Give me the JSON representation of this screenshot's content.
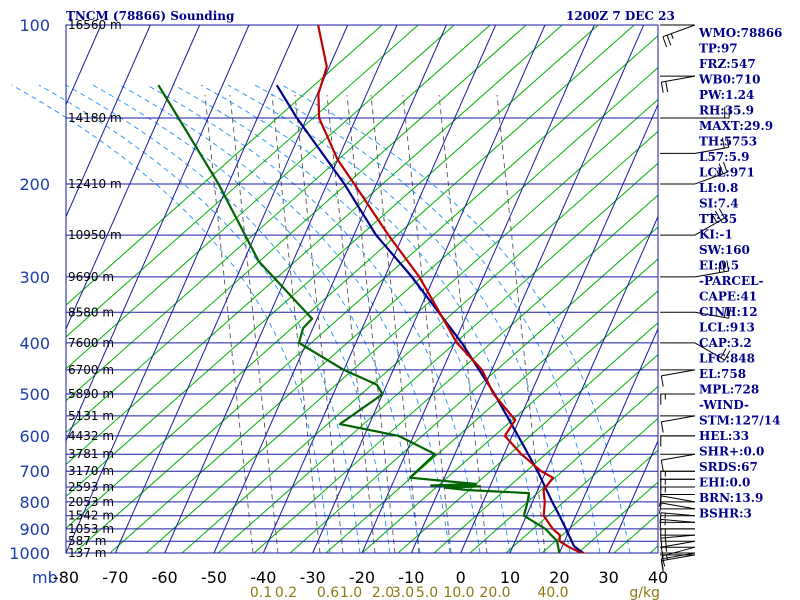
{
  "chart_data": {
    "type": "skew-t",
    "title": "TNCM (78866) Sounding",
    "valid_time": "1200Z  7 DEC 23",
    "pressure_axis_unit": "mb",
    "pressure_levels": [
      100,
      200,
      300,
      400,
      500,
      600,
      700,
      800,
      900,
      1000
    ],
    "temperature_ticks": [
      -80,
      -70,
      -60,
      -50,
      -40,
      -30,
      -20,
      -10,
      0,
      10,
      20,
      30,
      40
    ],
    "temperature_tick_labels": [
      "-80",
      "-70",
      "-60",
      "-50",
      "-40",
      "-30",
      "-20",
      "-10",
      "0",
      "10",
      "20",
      "30",
      "40"
    ],
    "mixing_ratio_labels": [
      "0.1",
      "0.2",
      "0.6",
      "1.0",
      "2.0",
      "3.0",
      "5.0",
      "10.0",
      "20.0",
      "40.0"
    ],
    "mixing_ratio_unit": "g/kg",
    "height_labels": [
      {
        "label": "16560 m",
        "p": 100
      },
      {
        "label": "14180 m",
        "p": 150
      },
      {
        "label": "12410 m",
        "p": 200
      },
      {
        "label": "10950 m",
        "p": 250
      },
      {
        "label": "9690 m",
        "p": 300
      },
      {
        "label": "8580 m",
        "p": 350
      },
      {
        "label": "7600 m",
        "p": 400
      },
      {
        "label": "6700 m",
        "p": 450
      },
      {
        "label": "5890 m",
        "p": 500
      },
      {
        "label": "5131 m",
        "p": 550
      },
      {
        "label": "4432 m",
        "p": 600
      },
      {
        "label": "3781 m",
        "p": 650
      },
      {
        "label": "3170 m",
        "p": 700
      },
      {
        "label": "2593 m",
        "p": 750
      },
      {
        "label": "2053 m",
        "p": 800
      },
      {
        "label": "1542 m",
        "p": 850
      },
      {
        "label": "1053 m",
        "p": 900
      },
      {
        "label": "587 m",
        "p": 950
      },
      {
        "label": "137 m",
        "p": 1000
      }
    ],
    "series": [
      {
        "name": "Temperature",
        "color": "#c00000",
        "points": [
          {
            "p": 1008,
            "t": 26.5
          },
          {
            "p": 1000,
            "t": 24.5
          },
          {
            "p": 975,
            "t": 21.5
          },
          {
            "p": 950,
            "t": 19.0
          },
          {
            "p": 925,
            "t": 18.5
          },
          {
            "p": 900,
            "t": 16.5
          },
          {
            "p": 850,
            "t": 13.5
          },
          {
            "p": 800,
            "t": 12.5
          },
          {
            "p": 760,
            "t": 11.2
          },
          {
            "p": 720,
            "t": 12.0
          },
          {
            "p": 700,
            "t": 9.0
          },
          {
            "p": 650,
            "t": 3.5
          },
          {
            "p": 600,
            "t": -1.5
          },
          {
            "p": 560,
            "t": -0.8
          },
          {
            "p": 500,
            "t": -7.5
          },
          {
            "p": 450,
            "t": -12.0
          },
          {
            "p": 400,
            "t": -19.5
          },
          {
            "p": 300,
            "t": -33.0
          },
          {
            "p": 250,
            "t": -43.0
          },
          {
            "p": 200,
            "t": -54.5
          },
          {
            "p": 180,
            "t": -60.0
          },
          {
            "p": 150,
            "t": -67.5
          },
          {
            "p": 135,
            "t": -69.8
          },
          {
            "p": 120,
            "t": -70.5
          },
          {
            "p": 100,
            "t": -76.0
          }
        ]
      },
      {
        "name": "Dewpoint",
        "color": "#006400",
        "points": [
          {
            "p": 1008,
            "t": 20.5
          },
          {
            "p": 1000,
            "t": 20.0
          },
          {
            "p": 950,
            "t": 18.5
          },
          {
            "p": 900,
            "t": 15.0
          },
          {
            "p": 850,
            "t": 9.5
          },
          {
            "p": 800,
            "t": 9.0
          },
          {
            "p": 770,
            "t": 8.5
          },
          {
            "p": 760,
            "t": -4.0
          },
          {
            "p": 752,
            "t": -9.0
          },
          {
            "p": 748,
            "t": -2.0
          },
          {
            "p": 745,
            "t": -12.0
          },
          {
            "p": 740,
            "t": -3.0
          },
          {
            "p": 720,
            "t": -17.0
          },
          {
            "p": 650,
            "t": -14.0
          },
          {
            "p": 600,
            "t": -23.0
          },
          {
            "p": 570,
            "t": -36.0
          },
          {
            "p": 500,
            "t": -30.0
          },
          {
            "p": 480,
            "t": -32.0
          },
          {
            "p": 450,
            "t": -40.0
          },
          {
            "p": 400,
            "t": -51.5
          },
          {
            "p": 375,
            "t": -52.0
          },
          {
            "p": 360,
            "t": -51.0
          },
          {
            "p": 280,
            "t": -67.0
          },
          {
            "p": 200,
            "t": -82.0
          },
          {
            "p": 150,
            "t": -96.0
          },
          {
            "p": 130,
            "t": -103.0
          }
        ]
      },
      {
        "name": "Parcel",
        "color": "#00008b",
        "points": [
          {
            "p": 1008,
            "t": 25.5
          },
          {
            "p": 971,
            "t": 22.4
          },
          {
            "p": 913,
            "t": 19.8
          },
          {
            "p": 848,
            "t": 16.6
          },
          {
            "p": 800,
            "t": 14.0
          },
          {
            "p": 700,
            "t": 8.3
          },
          {
            "p": 600,
            "t": 1.2
          },
          {
            "p": 500,
            "t": -7.3
          },
          {
            "p": 400,
            "t": -18.5
          },
          {
            "p": 300,
            "t": -34.5
          },
          {
            "p": 250,
            "t": -45.5
          },
          {
            "p": 200,
            "t": -56.5
          },
          {
            "p": 150,
            "t": -72.0
          },
          {
            "p": 130,
            "t": -79.0
          }
        ]
      }
    ],
    "wind_barbs": [
      {
        "p": 1008,
        "dir": 80,
        "kt": 10
      },
      {
        "p": 1000,
        "dir": 80,
        "kt": 10
      },
      {
        "p": 975,
        "dir": 75,
        "kt": 15
      },
      {
        "p": 950,
        "dir": 80,
        "kt": 15
      },
      {
        "p": 925,
        "dir": 85,
        "kt": 20
      },
      {
        "p": 900,
        "dir": 90,
        "kt": 20
      },
      {
        "p": 875,
        "dir": 95,
        "kt": 15
      },
      {
        "p": 850,
        "dir": 95,
        "kt": 15
      },
      {
        "p": 825,
        "dir": 100,
        "kt": 10
      },
      {
        "p": 800,
        "dir": 100,
        "kt": 10
      },
      {
        "p": 775,
        "dir": 90,
        "kt": 10
      },
      {
        "p": 750,
        "dir": 90,
        "kt": 15
      },
      {
        "p": 725,
        "dir": 90,
        "kt": 15
      },
      {
        "p": 700,
        "dir": 90,
        "kt": 15
      },
      {
        "p": 650,
        "dir": 80,
        "kt": 10
      },
      {
        "p": 600,
        "dir": 90,
        "kt": 10
      },
      {
        "p": 550,
        "dir": 80,
        "kt": 10
      },
      {
        "p": 500,
        "dir": 90,
        "kt": 15
      },
      {
        "p": 450,
        "dir": 80,
        "kt": 10
      },
      {
        "p": 400,
        "dir": 300,
        "kt": 20
      },
      {
        "p": 350,
        "dir": 280,
        "kt": 20
      },
      {
        "p": 300,
        "dir": 260,
        "kt": 25
      },
      {
        "p": 250,
        "dir": 240,
        "kt": 30
      },
      {
        "p": 200,
        "dir": 250,
        "kt": 25
      },
      {
        "p": 175,
        "dir": 260,
        "kt": 20
      },
      {
        "p": 150,
        "dir": 270,
        "kt": 20
      },
      {
        "p": 125,
        "dir": 80,
        "kt": 20
      },
      {
        "p": 100,
        "dir": 70,
        "kt": 25
      }
    ],
    "grid": true,
    "colors": {
      "isobar_isotherm": "#1a1aa0",
      "dry_adiabat": "#00b000",
      "moist_adiabat": "#1e90ff",
      "mixing_ratio": "#555555",
      "wind_barb": "#000000"
    }
  },
  "indices": [
    "WMO:78866",
    "TP:97",
    "FRZ:547",
    "WB0:710",
    "PW:1.24",
    "RH:35.9",
    "MAXT:29.9",
    "TH:5753",
    "L57:5.9",
    "LCL:971",
    "LI:0.8",
    "SI:7.4",
    "TT:35",
    "KI:-1",
    "SW:160",
    "EI:0.5",
    "-PARCEL-",
    "CAPE:41",
    "CINH:12",
    "LCL:913",
    "CAP:3.2",
    "LFC:848",
    "EL:758",
    "MPL:728",
    "-WIND-",
    "STM:127/14",
    "HEL:33",
    "SHR+:0.0",
    "SRDS:67",
    "EHI:0.0",
    "BRN:13.9",
    "BSHR:3"
  ]
}
